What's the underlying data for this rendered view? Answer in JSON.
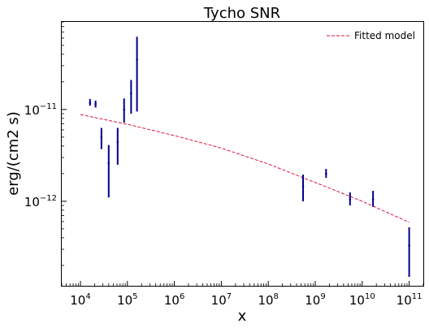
{
  "chart_data": {
    "type": "scatter",
    "title": "Tycho SNR",
    "xlabel": "x",
    "ylabel": "erg/(cm2 s)",
    "xscale": "log",
    "yscale": "log",
    "xlim": [
      4000,
      200000000000
    ],
    "ylim": [
      1.2e-13,
      9e-11
    ],
    "x_ticks": [
      {
        "value": 10000,
        "base": "10",
        "exp": "4"
      },
      {
        "value": 100000,
        "base": "10",
        "exp": "5"
      },
      {
        "value": 1000000,
        "base": "10",
        "exp": "6"
      },
      {
        "value": 10000000,
        "base": "10",
        "exp": "7"
      },
      {
        "value": 100000000,
        "base": "10",
        "exp": "8"
      },
      {
        "value": 1000000000,
        "base": "10",
        "exp": "9"
      },
      {
        "value": 10000000000,
        "base": "10",
        "exp": "10"
      },
      {
        "value": 100000000000,
        "base": "10",
        "exp": "11"
      }
    ],
    "y_ticks": [
      {
        "value": 1e-11,
        "base": "10",
        "exp": "−11"
      },
      {
        "value": 1e-12,
        "base": "10",
        "exp": "−12"
      }
    ],
    "grid": false,
    "legend_position": "top-right",
    "series": [
      {
        "name": "",
        "type": "errorbar",
        "color": "#00008b",
        "points": [
          {
            "x": 16000,
            "y": 1.18e-11,
            "ylo": 1.1e-11,
            "yhi": 1.3e-11
          },
          {
            "x": 21000,
            "y": 1.15e-11,
            "ylo": 1.05e-11,
            "yhi": 1.25e-11
          },
          {
            "x": 28000,
            "y": 5e-12,
            "ylo": 3.7e-12,
            "yhi": 6.3e-12
          },
          {
            "x": 40000,
            "y": 2.6e-12,
            "ylo": 1.1e-12,
            "yhi": 4.1e-12
          },
          {
            "x": 62000,
            "y": 4.4e-12,
            "ylo": 2.5e-12,
            "yhi": 6.3e-12
          },
          {
            "x": 85000,
            "y": 1e-11,
            "ylo": 7.2e-12,
            "yhi": 1.32e-11
          },
          {
            "x": 120000,
            "y": 1.5e-11,
            "ylo": 9e-12,
            "yhi": 2.1e-11
          },
          {
            "x": 160000,
            "y": 3.5e-11,
            "ylo": 9.5e-12,
            "yhi": 6.2e-11
          },
          {
            "x": 550000000,
            "y": 1.45e-12,
            "ylo": 1e-12,
            "yhi": 1.95e-12
          },
          {
            "x": 1700000000,
            "y": 2e-12,
            "ylo": 1.8e-12,
            "yhi": 2.25e-12
          },
          {
            "x": 5500000000,
            "y": 1.05e-12,
            "ylo": 9e-13,
            "yhi": 1.25e-12
          },
          {
            "x": 17000000000,
            "y": 1.05e-12,
            "ylo": 8.7e-13,
            "yhi": 1.3e-12
          },
          {
            "x": 100000000000,
            "y": 3.3e-13,
            "ylo": 1.5e-13,
            "yhi": 5.2e-13
          }
        ]
      },
      {
        "name": "Fitted model",
        "type": "line",
        "style": "dashed",
        "color": "#dc143c",
        "x": [
          10000,
          100000,
          1000000,
          10000000,
          100000000,
          1000000000,
          10000000000,
          100000000000
        ],
        "y": [
          8.8e-12,
          6.9e-12,
          5.2e-12,
          3.8e-12,
          2.55e-12,
          1.6e-12,
          1e-12,
          5.9e-13
        ]
      }
    ]
  }
}
